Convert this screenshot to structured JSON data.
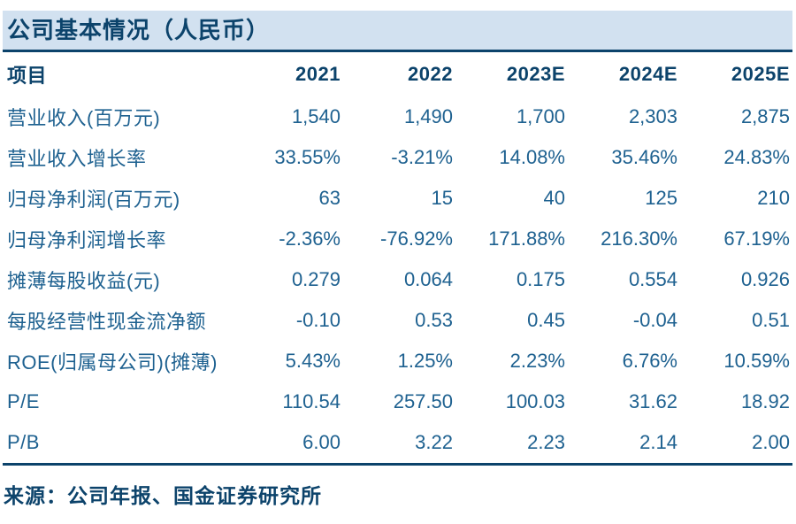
{
  "title": "公司基本情况（人民币）",
  "source": "来源：公司年报、国金证券研究所",
  "colors": {
    "accent_navy": "#0c436b",
    "body_blue": "#1e6190",
    "band_background": "#d2e1f0",
    "page_background": "#ffffff"
  },
  "table": {
    "header": [
      "项目",
      "2021",
      "2022",
      "2023E",
      "2024E",
      "2025E"
    ],
    "rows": [
      {
        "label": "营业收入(百万元)",
        "values": [
          "1,540",
          "1,490",
          "1,700",
          "2,303",
          "2,875"
        ]
      },
      {
        "label": "营业收入增长率",
        "values": [
          "33.55%",
          "-3.21%",
          "14.08%",
          "35.46%",
          "24.83%"
        ]
      },
      {
        "label": "归母净利润(百万元)",
        "values": [
          "63",
          "15",
          "40",
          "125",
          "210"
        ]
      },
      {
        "label": "归母净利润增长率",
        "values": [
          "-2.36%",
          "-76.92%",
          "171.88%",
          "216.30%",
          "67.19%"
        ]
      },
      {
        "label": "摊薄每股收益(元)",
        "values": [
          "0.279",
          "0.064",
          "0.175",
          "0.554",
          "0.926"
        ]
      },
      {
        "label": "每股经营性现金流净额",
        "values": [
          "-0.10",
          "0.53",
          "0.45",
          "-0.04",
          "0.51"
        ]
      },
      {
        "label": "ROE(归属母公司)(摊薄)",
        "values": [
          "5.43%",
          "1.25%",
          "2.23%",
          "6.76%",
          "10.59%"
        ]
      },
      {
        "label": "P/E",
        "values": [
          "110.54",
          "257.50",
          "100.03",
          "31.62",
          "18.92"
        ]
      },
      {
        "label": "P/B",
        "values": [
          "6.00",
          "3.22",
          "2.23",
          "2.14",
          "2.00"
        ]
      }
    ]
  }
}
